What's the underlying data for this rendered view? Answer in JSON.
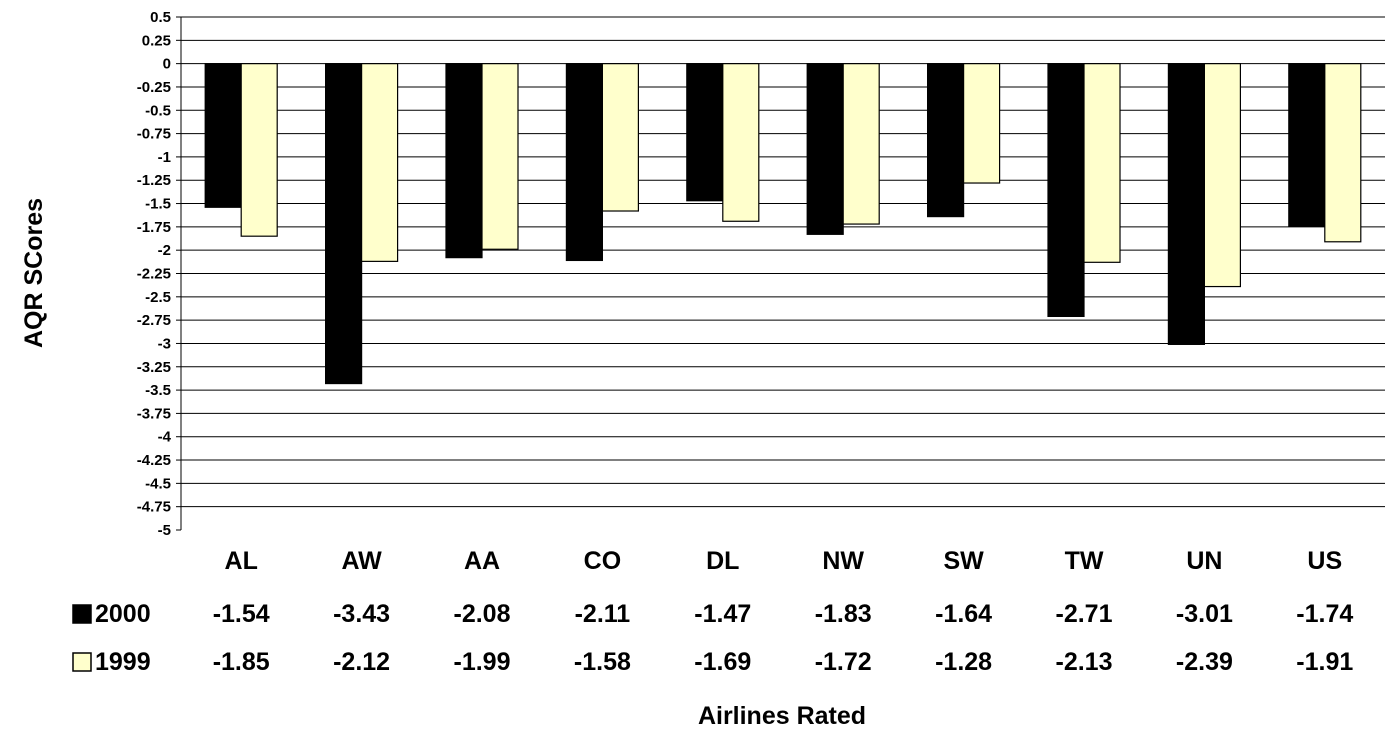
{
  "chart_data": {
    "type": "bar",
    "xlabel": "Airlines Rated",
    "ylabel": "AQR SCores",
    "ylim": [
      -5,
      0.5
    ],
    "ytick_step": 0.25,
    "grid": true,
    "legend_placement": "data-table-left",
    "categories": [
      "AL",
      "AW",
      "AA",
      "CO",
      "DL",
      "NW",
      "SW",
      "TW",
      "UN",
      "US"
    ],
    "series": [
      {
        "name": "2000",
        "color": "#000000",
        "values": [
          -1.54,
          -3.43,
          -2.08,
          -2.11,
          -1.47,
          -1.83,
          -1.64,
          -2.71,
          -3.01,
          -1.74
        ],
        "labels": [
          "-1.54",
          "-3.43",
          "-2.08",
          "-2.11",
          "-1.47",
          "-1.83",
          "-1.64",
          "-2.71",
          "-3.01",
          "-1.74"
        ]
      },
      {
        "name": "1999",
        "color": "#ffffcc",
        "values": [
          -1.85,
          -2.12,
          -1.99,
          -1.58,
          -1.69,
          -1.72,
          -1.28,
          -2.13,
          -2.39,
          -1.91
        ],
        "labels": [
          "-1.85",
          "-2.12",
          "-1.99",
          "-1.58",
          "-1.69",
          "-1.72",
          "-1.28",
          "-2.13",
          "-2.39",
          "-1.91"
        ]
      }
    ]
  }
}
